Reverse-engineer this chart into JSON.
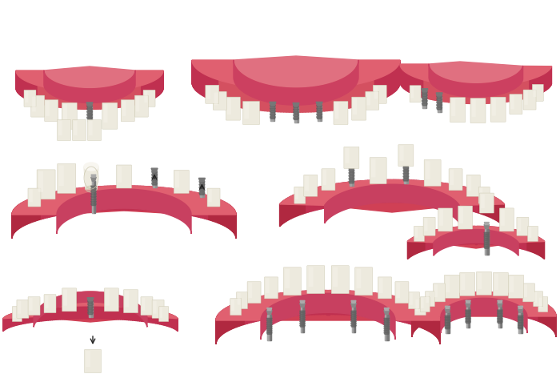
{
  "background_color": "#ffffff",
  "figure_width": 7.0,
  "figure_height": 4.67,
  "dpi": 100,
  "gum_top": "#e06070",
  "gum_mid": "#d45060",
  "gum_bot": "#c03050",
  "gum_inner": "#cc4455",
  "gum_light": "#e87888",
  "gum_shadow": "#b02840",
  "tooth_base": "#edeade",
  "tooth_light": "#f5f3ea",
  "tooth_shadow": "#ccc8b0",
  "imp_body": "#909090",
  "imp_dark": "#606060",
  "imp_light": "#c0c0c0",
  "crown_base": "#edeade",
  "crown_light": "#f8f6f0"
}
